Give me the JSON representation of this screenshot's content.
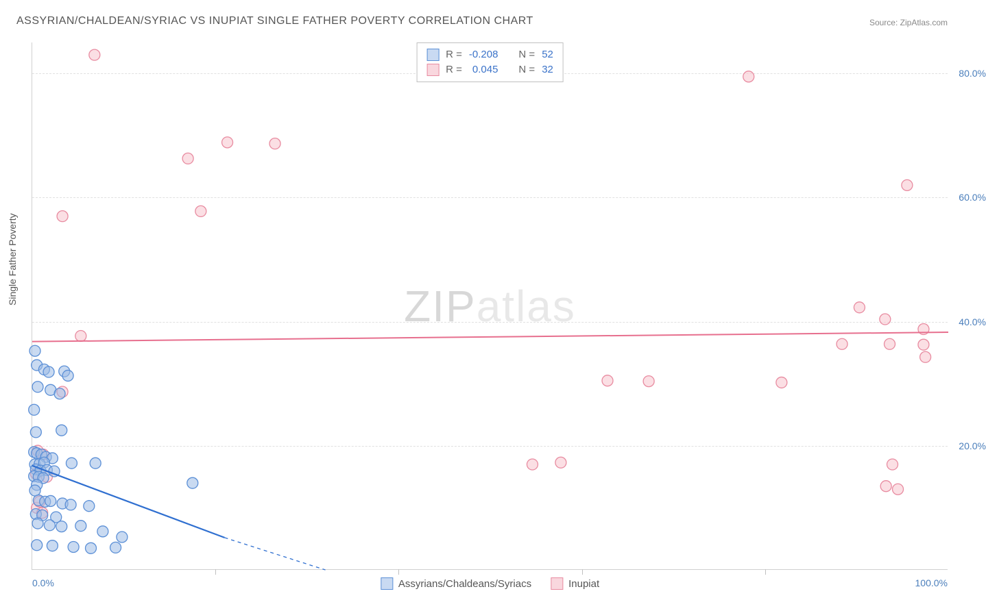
{
  "title": "ASSYRIAN/CHALDEAN/SYRIAC VS INUPIAT SINGLE FATHER POVERTY CORRELATION CHART",
  "source": "Source: ZipAtlas.com",
  "ylabel": "Single Father Poverty",
  "watermark_a": "ZIP",
  "watermark_b": "atlas",
  "chart": {
    "type": "scatter",
    "xlim": [
      0,
      100
    ],
    "ylim": [
      0,
      85
    ],
    "yticks": [
      20,
      40,
      60,
      80
    ],
    "ytick_labels": [
      "20.0%",
      "40.0%",
      "60.0%",
      "80.0%"
    ],
    "xticks": [
      0,
      20,
      40,
      60,
      80,
      100
    ],
    "xtick_labels_shown": {
      "0": "0.0%",
      "100": "100.0%"
    },
    "background_color": "#ffffff",
    "grid_color": "#e0e0e0",
    "axis_color": "#d0d0d0",
    "marker_radius": 8,
    "series": {
      "blue": {
        "label": "Assyrians/Chaldeans/Syriacs",
        "fill": "#9dbce6",
        "stroke": "#5b8fd6",
        "R": "-0.208",
        "N": "52",
        "trend": {
          "x1": 0,
          "y1": 16.8,
          "x2": 21,
          "y2": 5.2,
          "dash_to_x": 32
        },
        "points": [
          [
            0.3,
            35.3
          ],
          [
            0.5,
            33.0
          ],
          [
            1.3,
            32.3
          ],
          [
            1.8,
            31.9
          ],
          [
            3.5,
            32.0
          ],
          [
            3.9,
            31.3
          ],
          [
            0.6,
            29.5
          ],
          [
            2.0,
            29.0
          ],
          [
            3.0,
            28.4
          ],
          [
            0.2,
            25.8
          ],
          [
            0.4,
            22.2
          ],
          [
            3.2,
            22.5
          ],
          [
            0.2,
            19.0
          ],
          [
            0.5,
            18.8
          ],
          [
            1.0,
            18.6
          ],
          [
            1.5,
            18.2
          ],
          [
            2.2,
            18.0
          ],
          [
            0.3,
            17.0
          ],
          [
            0.8,
            17.1
          ],
          [
            1.3,
            17.3
          ],
          [
            4.3,
            17.2
          ],
          [
            6.9,
            17.2
          ],
          [
            0.4,
            16.2
          ],
          [
            0.9,
            16.0
          ],
          [
            1.6,
            16.1
          ],
          [
            2.4,
            15.9
          ],
          [
            0.2,
            15.1
          ],
          [
            0.7,
            15.0
          ],
          [
            1.2,
            14.8
          ],
          [
            0.5,
            13.7
          ],
          [
            0.3,
            12.8
          ],
          [
            17.5,
            14.0
          ],
          [
            0.7,
            11.2
          ],
          [
            1.4,
            11.0
          ],
          [
            2.0,
            11.1
          ],
          [
            3.3,
            10.7
          ],
          [
            4.2,
            10.5
          ],
          [
            6.2,
            10.3
          ],
          [
            0.4,
            9.0
          ],
          [
            1.1,
            8.8
          ],
          [
            2.6,
            8.5
          ],
          [
            0.6,
            7.5
          ],
          [
            1.9,
            7.2
          ],
          [
            3.2,
            7.0
          ],
          [
            5.3,
            7.1
          ],
          [
            7.7,
            6.2
          ],
          [
            9.8,
            5.3
          ],
          [
            0.5,
            4.0
          ],
          [
            2.2,
            3.9
          ],
          [
            4.5,
            3.7
          ],
          [
            6.4,
            3.5
          ],
          [
            9.1,
            3.6
          ]
        ]
      },
      "pink": {
        "label": "Inupiat",
        "fill": "#f7c4ce",
        "stroke": "#e88ba0",
        "R": "0.045",
        "N": "32",
        "trend": {
          "x1": 0,
          "y1": 36.8,
          "x2": 100,
          "y2": 38.3
        },
        "points": [
          [
            6.8,
            83.0
          ],
          [
            78.2,
            79.5
          ],
          [
            21.3,
            68.9
          ],
          [
            26.5,
            68.7
          ],
          [
            17.0,
            66.3
          ],
          [
            95.5,
            62.0
          ],
          [
            3.3,
            57.0
          ],
          [
            18.4,
            57.8
          ],
          [
            90.3,
            42.3
          ],
          [
            93.1,
            40.4
          ],
          [
            97.3,
            38.8
          ],
          [
            5.3,
            37.7
          ],
          [
            88.4,
            36.4
          ],
          [
            93.6,
            36.4
          ],
          [
            97.3,
            36.3
          ],
          [
            97.5,
            34.3
          ],
          [
            62.8,
            30.5
          ],
          [
            67.3,
            30.4
          ],
          [
            81.8,
            30.2
          ],
          [
            3.3,
            28.7
          ],
          [
            0.6,
            19.2
          ],
          [
            1.2,
            18.6
          ],
          [
            54.6,
            17.0
          ],
          [
            57.7,
            17.3
          ],
          [
            93.9,
            17.0
          ],
          [
            0.4,
            15.5
          ],
          [
            1.6,
            15.0
          ],
          [
            93.2,
            13.5
          ],
          [
            94.5,
            13.0
          ],
          [
            0.5,
            10.0
          ],
          [
            1.1,
            9.2
          ],
          [
            0.8,
            11.0
          ]
        ]
      }
    }
  },
  "top_legend": {
    "rows": [
      {
        "swatch": "blue",
        "r_label": "R =",
        "r_val": "-0.208",
        "n_label": "N =",
        "n_val": "52"
      },
      {
        "swatch": "pink",
        "r_label": "R =",
        "r_val": "0.045",
        "n_label": "N =",
        "n_val": "32"
      }
    ]
  },
  "bottom_legend": {
    "items": [
      {
        "swatch": "blue",
        "label": "Assyrians/Chaldeans/Syriacs"
      },
      {
        "swatch": "pink",
        "label": "Inupiat"
      }
    ]
  }
}
